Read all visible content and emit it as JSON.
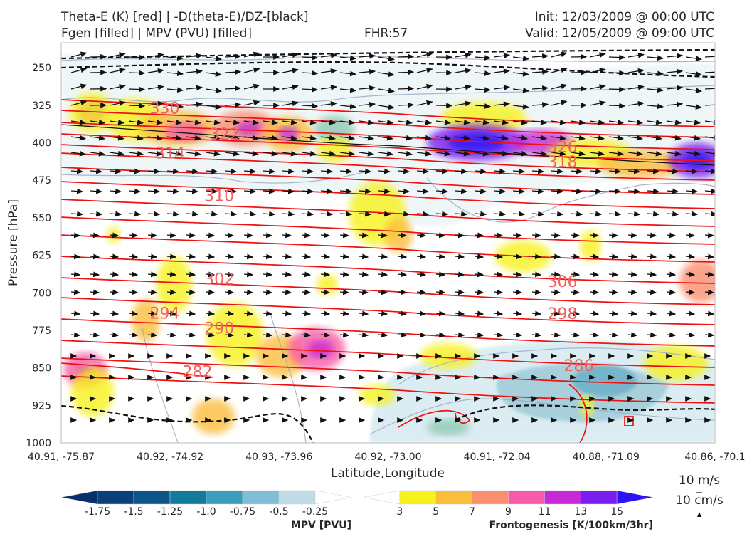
{
  "header": {
    "title_line1": "Theta-E (K) [red] | -D(theta-E)/DZ-[black]",
    "title_line2": "Fgen [filled] | MPV (PVU) [filled]",
    "fhr": "FHR:57",
    "init": "Init: 12/03/2009 @ 00:00 UTC",
    "valid": "Valid: 12/05/2009 @ 09:00 UTC"
  },
  "legend": {
    "vector_h": "10 m/s",
    "vector_v": "10 cm/s"
  },
  "chart_data": {
    "type": "cross-section",
    "xlabel": "Latitude,Longitude",
    "ylabel": "Pressure [hPa]",
    "ylim": [
      1000,
      200
    ],
    "y_ticks": [
      250,
      325,
      400,
      475,
      550,
      625,
      700,
      775,
      850,
      925,
      1000
    ],
    "x_ticks": [
      "40.91, -75.87",
      "40.92, -74.92",
      "40.93, -73.96",
      "40.92, -73.00",
      "40.91, -72.04",
      "40.88, -71.09",
      "40.86, -70.1"
    ],
    "theta_e_labels": [
      {
        "value": "330",
        "x_index": 0.95,
        "p": 330
      },
      {
        "value": "322",
        "x_index": 1.5,
        "p": 382
      },
      {
        "value": "314",
        "x_index": 1.0,
        "p": 420
      },
      {
        "value": "310",
        "x_index": 1.45,
        "p": 505
      },
      {
        "value": "326",
        "x_index": 4.6,
        "p": 408
      },
      {
        "value": "318",
        "x_index": 4.6,
        "p": 438
      },
      {
        "value": "302",
        "x_index": 1.45,
        "p": 672
      },
      {
        "value": "306",
        "x_index": 4.6,
        "p": 677
      },
      {
        "value": "294",
        "x_index": 0.95,
        "p": 740
      },
      {
        "value": "298",
        "x_index": 4.6,
        "p": 741
      },
      {
        "value": "290",
        "x_index": 1.45,
        "p": 770
      },
      {
        "value": "282",
        "x_index": 1.25,
        "p": 857
      },
      {
        "value": "286",
        "x_index": 4.75,
        "p": 845
      }
    ],
    "mpv_colorbar": {
      "label": "MPV [PVU]",
      "ticks": [
        "-1.75",
        "-1.5",
        "-1.25",
        "-1.0",
        "-0.75",
        "-0.5",
        "-0.25"
      ],
      "colors": [
        "#08306b",
        "#0b3f7a",
        "#0d5589",
        "#137a9e",
        "#3a9dbd",
        "#7fbed4",
        "#bfdde6",
        "#ffffff"
      ]
    },
    "fgen_colorbar": {
      "label": "Frontogenesis [K/100km/3hr]",
      "ticks": [
        "3",
        "5",
        "7",
        "9",
        "11",
        "13",
        "15"
      ],
      "colors": [
        "#ffffff",
        "#f7f21c",
        "#fbbd3c",
        "#fb8e6e",
        "#f75aa7",
        "#c52ad6",
        "#7a1ef0",
        "#2a14f5"
      ]
    }
  }
}
